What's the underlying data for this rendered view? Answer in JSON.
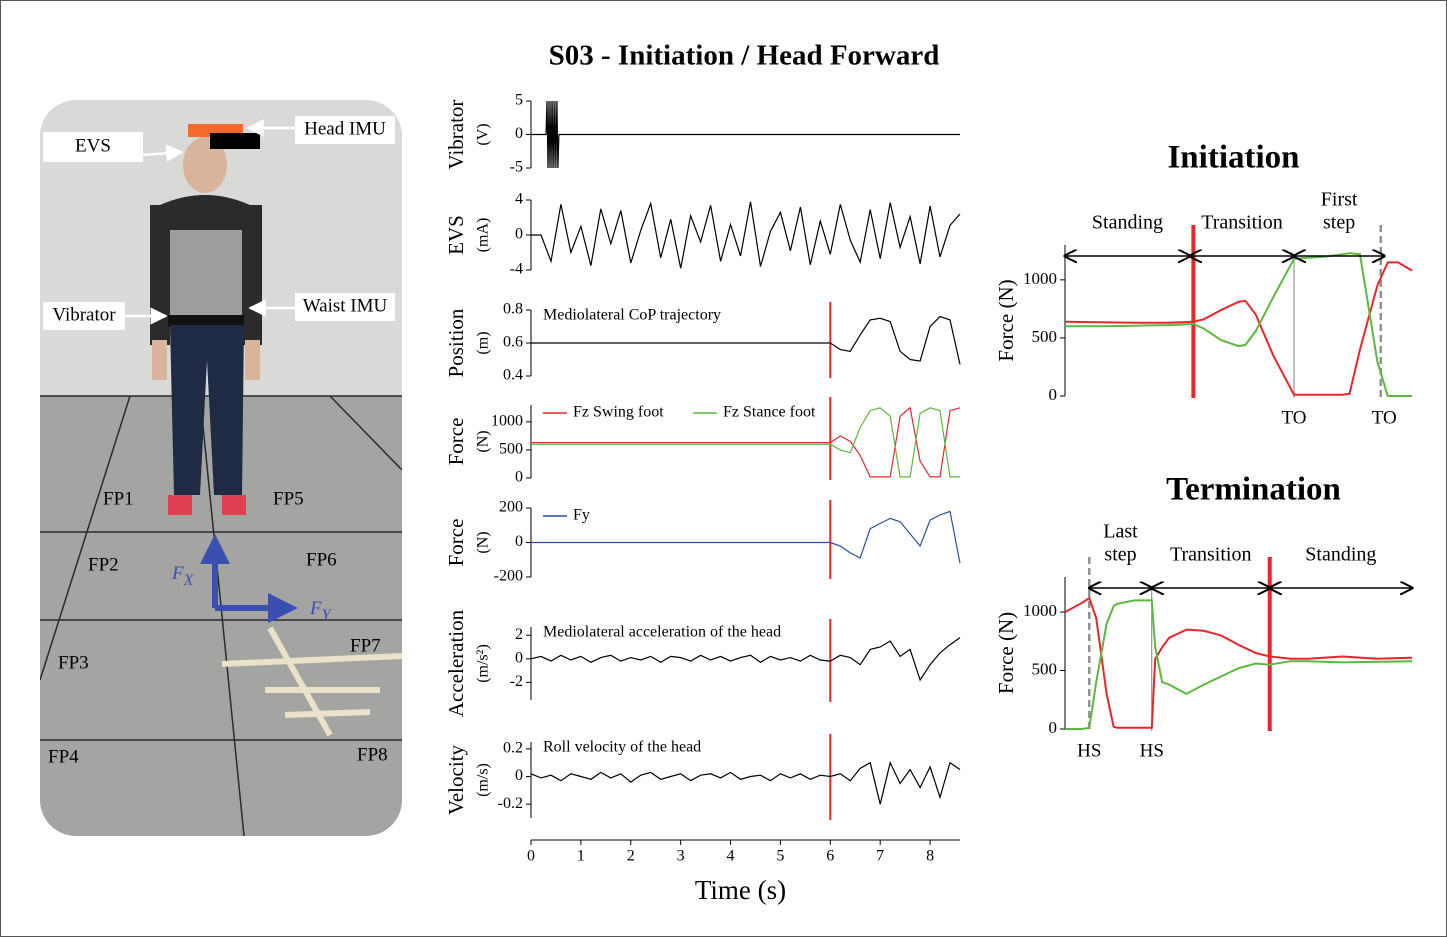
{
  "title": "S03 - Initiation / Head Forward",
  "photo": {
    "labels": [
      "EVS",
      "Head IMU",
      "Vibrator",
      "Waist IMU"
    ],
    "plates": [
      "FP1",
      "FP2",
      "FP3",
      "FP4",
      "FP5",
      "FP6",
      "FP7",
      "FP8"
    ],
    "fx": [
      "F",
      "X"
    ],
    "fy": [
      "F",
      "Y"
    ]
  },
  "chart_data": [
    {
      "type": "line",
      "ylabel": [
        "Vibrator",
        "(V)"
      ],
      "xlim": [
        0,
        8.6
      ],
      "ylim": [
        -5,
        5
      ],
      "yticks": [
        -5,
        0,
        5
      ],
      "x": [
        0,
        0.3,
        0.32,
        0.34,
        0.36,
        0.38,
        0.4,
        0.42,
        0.44,
        0.46,
        0.48,
        0.5,
        0.52,
        0.54,
        0.56,
        8.6
      ],
      "series": [
        {
          "color": "#000000",
          "values": [
            0,
            0,
            5,
            -5,
            5,
            -5,
            5,
            -5,
            5,
            -5,
            5,
            -5,
            5,
            -5,
            0,
            0
          ]
        }
      ]
    },
    {
      "type": "line",
      "ylabel": [
        "EVS",
        "(mA)"
      ],
      "xlim": [
        0,
        8.6
      ],
      "ylim": [
        -4,
        4
      ],
      "yticks": [
        -4,
        0,
        4
      ],
      "x": [
        0,
        0.2,
        0.4,
        0.6,
        0.8,
        1,
        1.2,
        1.4,
        1.6,
        1.8,
        2,
        2.2,
        2.4,
        2.6,
        2.8,
        3,
        3.2,
        3.4,
        3.6,
        3.8,
        4,
        4.2,
        4.4,
        4.6,
        4.8,
        5,
        5.2,
        5.4,
        5.6,
        5.8,
        6,
        6.2,
        6.4,
        6.6,
        6.8,
        7,
        7.2,
        7.4,
        7.6,
        7.8,
        8,
        8.2,
        8.4,
        8.6
      ],
      "series": [
        {
          "color": "#000000",
          "values": [
            0,
            0,
            -3,
            3.5,
            -2,
            1,
            -3.5,
            3,
            -1,
            2.8,
            -3.2,
            0.5,
            3.6,
            -2.6,
            1.8,
            -3.8,
            2.2,
            -0.8,
            3.4,
            -3,
            1.2,
            -2.4,
            3.8,
            -3.6,
            0.4,
            2.6,
            -1.8,
            3.2,
            -3.4,
            1.6,
            -2.2,
            3.5,
            -0.6,
            -3.1,
            2.9,
            -2.7,
            3.7,
            -1.4,
            2.1,
            -3.3,
            3.3,
            -2.5,
            1.1,
            2.4
          ]
        }
      ]
    },
    {
      "type": "line",
      "ylabel": [
        "Position",
        "(m)"
      ],
      "annotation": "Mediolateral CoP trajectory",
      "xlim": [
        0,
        8.6
      ],
      "ylim": [
        0.4,
        0.8
      ],
      "yticks": [
        0.4,
        0.6,
        0.8
      ],
      "markers": [
        {
          "x": 6,
          "color": "#e8262b",
          "style": "thin"
        }
      ],
      "x": [
        0,
        1,
        2,
        3,
        4,
        5,
        6,
        6.2,
        6.4,
        6.6,
        6.8,
        7,
        7.2,
        7.4,
        7.6,
        7.8,
        8,
        8.2,
        8.4,
        8.6
      ],
      "series": [
        {
          "color": "#000000",
          "values": [
            0.6,
            0.6,
            0.6,
            0.6,
            0.6,
            0.6,
            0.6,
            0.56,
            0.55,
            0.65,
            0.74,
            0.75,
            0.73,
            0.55,
            0.5,
            0.49,
            0.7,
            0.76,
            0.74,
            0.47
          ]
        }
      ]
    },
    {
      "type": "line",
      "ylabel": [
        "Force",
        "(N)"
      ],
      "xlim": [
        0,
        8.6
      ],
      "ylim": [
        0,
        1300
      ],
      "yticks": [
        0,
        500,
        1000
      ],
      "markers": [
        {
          "x": 6,
          "color": "#e8262b",
          "style": "thin"
        }
      ],
      "x": [
        0,
        1,
        2,
        3,
        4,
        5,
        6,
        6.2,
        6.4,
        6.6,
        6.8,
        7,
        7.2,
        7.4,
        7.6,
        7.8,
        8,
        8.2,
        8.4,
        8.6
      ],
      "series": [
        {
          "name": "Fz Swing foot",
          "color": "#e8262b",
          "values": [
            630,
            630,
            630,
            630,
            630,
            630,
            630,
            750,
            650,
            400,
            20,
            20,
            20,
            1100,
            1250,
            300,
            20,
            20,
            1200,
            1250
          ]
        },
        {
          "name": "Fz Stance foot",
          "color": "#5cb83f",
          "values": [
            600,
            600,
            600,
            600,
            600,
            600,
            600,
            500,
            450,
            900,
            1200,
            1250,
            1100,
            20,
            20,
            1150,
            1250,
            1200,
            20,
            20
          ]
        }
      ]
    },
    {
      "type": "line",
      "ylabel": [
        "Force",
        "(N)"
      ],
      "xlim": [
        0,
        8.6
      ],
      "ylim": [
        -200,
        200
      ],
      "yticks": [
        -200,
        0,
        200
      ],
      "markers": [
        {
          "x": 6,
          "color": "#e8262b",
          "style": "thin"
        }
      ],
      "x": [
        0,
        1,
        2,
        3,
        4,
        5,
        6,
        6.2,
        6.4,
        6.6,
        6.8,
        7,
        7.2,
        7.4,
        7.6,
        7.8,
        8,
        8.2,
        8.4,
        8.6
      ],
      "series": [
        {
          "name": "Fy",
          "color": "#2c4fa0",
          "values": [
            0,
            0,
            0,
            0,
            0,
            0,
            0,
            -20,
            -60,
            -90,
            80,
            110,
            140,
            120,
            50,
            -20,
            130,
            160,
            180,
            -120
          ]
        }
      ]
    },
    {
      "type": "line",
      "ylabel": [
        "Acceleration",
        "(m/s²)"
      ],
      "annotation": "Mediolateral acceleration of the head",
      "xlim": [
        0,
        8.6
      ],
      "ylim": [
        -3.5,
        2.7
      ],
      "yticks": [
        -2,
        0,
        2
      ],
      "markers": [
        {
          "x": 6,
          "color": "#e8262b",
          "style": "thin"
        }
      ],
      "x": [
        0,
        0.2,
        0.4,
        0.6,
        0.8,
        1,
        1.2,
        1.4,
        1.6,
        1.8,
        2,
        2.2,
        2.4,
        2.6,
        2.8,
        3,
        3.2,
        3.4,
        3.6,
        3.8,
        4,
        4.2,
        4.4,
        4.6,
        4.8,
        5,
        5.2,
        5.4,
        5.6,
        5.8,
        6,
        6.2,
        6.4,
        6.6,
        6.8,
        7,
        7.2,
        7.4,
        7.6,
        7.8,
        8,
        8.2,
        8.4,
        8.6
      ],
      "series": [
        {
          "color": "#000000",
          "values": [
            0,
            0.2,
            -0.2,
            0.3,
            -0.1,
            0.2,
            -0.3,
            0.1,
            0.3,
            -0.2,
            0.1,
            -0.1,
            0.2,
            -0.3,
            0.2,
            0.1,
            -0.2,
            0.3,
            -0.1,
            0.2,
            -0.2,
            0.1,
            0.3,
            -0.3,
            0.2,
            -0.1,
            0.1,
            -0.2,
            0.3,
            -0.1,
            -0.2,
            0.3,
            0.1,
            -0.5,
            0.8,
            1,
            1.5,
            0.2,
            0.8,
            -1.8,
            -0.5,
            0.5,
            1.2,
            1.8
          ]
        }
      ]
    },
    {
      "type": "line",
      "ylabel": [
        "Velocity",
        "(m/s)"
      ],
      "annotation": "Roll velocity of the head",
      "xlabel": "Time (s)",
      "xlim": [
        0,
        8.6
      ],
      "ylim": [
        -0.3,
        0.25
      ],
      "yticks": [
        -0.2,
        0,
        0.2
      ],
      "xticks": [
        0,
        1,
        2,
        3,
        4,
        5,
        6,
        7,
        8
      ],
      "markers": [
        {
          "x": 6,
          "color": "#e8262b",
          "style": "thin"
        }
      ],
      "x": [
        0,
        0.2,
        0.4,
        0.6,
        0.8,
        1,
        1.2,
        1.4,
        1.6,
        1.8,
        2,
        2.2,
        2.4,
        2.6,
        2.8,
        3,
        3.2,
        3.4,
        3.6,
        3.8,
        4,
        4.2,
        4.4,
        4.6,
        4.8,
        5,
        5.2,
        5.4,
        5.6,
        5.8,
        6,
        6.2,
        6.4,
        6.6,
        6.8,
        7,
        7.2,
        7.4,
        7.6,
        7.8,
        8,
        8.2,
        8.4,
        8.6
      ],
      "series": [
        {
          "color": "#000000",
          "values": [
            0.02,
            -0.01,
            0.01,
            -0.03,
            0.02,
            0,
            -0.02,
            0.03,
            -0.01,
            0.02,
            -0.04,
            0.01,
            0.03,
            -0.02,
            0,
            0.02,
            -0.03,
            0.01,
            0.02,
            -0.01,
            0.03,
            -0.02,
            0,
            0.01,
            -0.03,
            0.02,
            -0.01,
            0.02,
            -0.02,
            0.01,
            0,
            0.02,
            -0.03,
            0.06,
            0.1,
            -0.2,
            0.1,
            -0.05,
            0.05,
            -0.08,
            0.07,
            -0.15,
            0.1,
            0.05
          ]
        }
      ]
    },
    {
      "type": "line",
      "title": "Initiation",
      "ylabel": [
        "Force (N)"
      ],
      "xlim": [
        0,
        100
      ],
      "ylim": [
        0,
        1300
      ],
      "yticks": [
        0,
        500,
        1000
      ],
      "markers": [
        {
          "x": 37,
          "color": "#e8262b",
          "style": "thick"
        },
        {
          "x": 66,
          "color": "#808080",
          "style": "thin"
        },
        {
          "x": 91,
          "color": "#909090",
          "style": "dashed"
        }
      ],
      "phases": [
        {
          "label": [
            "Standing"
          ],
          "from": 0,
          "to": 36
        },
        {
          "label": [
            "Transition"
          ],
          "from": 36,
          "to": 66
        },
        {
          "label": [
            "First",
            "step"
          ],
          "from": 66,
          "to": 92
        }
      ],
      "events": [
        {
          "label": "TO",
          "x": 66
        },
        {
          "label": "TO",
          "x": 92
        }
      ],
      "x": [
        0,
        10,
        20,
        30,
        37,
        40,
        45,
        50,
        52,
        55,
        60,
        66,
        70,
        75,
        80,
        82,
        85,
        90,
        93,
        96,
        100
      ],
      "series": [
        {
          "color": "#e8262b",
          "values": [
            640,
            635,
            630,
            630,
            640,
            660,
            740,
            810,
            820,
            700,
            350,
            10,
            10,
            10,
            10,
            20,
            400,
            950,
            1150,
            1150,
            1080
          ]
        },
        {
          "color": "#5cb83f",
          "values": [
            600,
            600,
            605,
            610,
            620,
            580,
            480,
            430,
            440,
            560,
            850,
            1180,
            1190,
            1200,
            1220,
            1230,
            1220,
            300,
            0,
            0,
            0
          ]
        }
      ]
    },
    {
      "type": "line",
      "title": "Termination",
      "ylabel": [
        "Force (N)"
      ],
      "xlim": [
        0,
        100
      ],
      "ylim": [
        0,
        1300
      ],
      "yticks": [
        0,
        500,
        1000
      ],
      "markers": [
        {
          "x": 7,
          "color": "#909090",
          "style": "dashed"
        },
        {
          "x": 25,
          "color": "#808080",
          "style": "thin"
        },
        {
          "x": 59,
          "color": "#e8262b",
          "style": "thick"
        }
      ],
      "phases": [
        {
          "label": [
            "Last",
            "step"
          ],
          "from": 7,
          "to": 25
        },
        {
          "label": [
            "Transition"
          ],
          "from": 25,
          "to": 59
        },
        {
          "label": [
            "Standing"
          ],
          "from": 59,
          "to": 100
        }
      ],
      "events": [
        {
          "label": "HS",
          "x": 7
        },
        {
          "label": "HS",
          "x": 25
        }
      ],
      "x": [
        0,
        5,
        7,
        9,
        12,
        14,
        15,
        20,
        25,
        26,
        28,
        30,
        35,
        40,
        45,
        50,
        55,
        59,
        65,
        70,
        80,
        90,
        100
      ],
      "series": [
        {
          "color": "#e8262b",
          "values": [
            1000,
            1080,
            1120,
            950,
            300,
            20,
            10,
            10,
            10,
            600,
            700,
            780,
            850,
            840,
            800,
            720,
            650,
            620,
            600,
            600,
            620,
            600,
            610
          ]
        },
        {
          "color": "#5cb83f",
          "values": [
            0,
            0,
            10,
            400,
            900,
            1050,
            1070,
            1100,
            1100,
            700,
            400,
            380,
            300,
            380,
            450,
            520,
            560,
            550,
            580,
            580,
            570,
            575,
            580
          ]
        }
      ]
    }
  ]
}
